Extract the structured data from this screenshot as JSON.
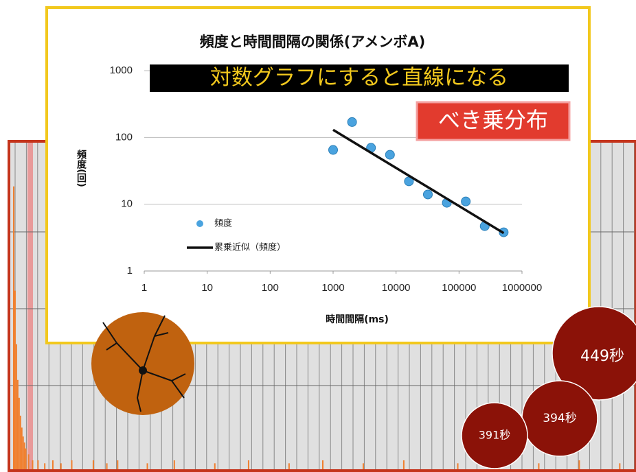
{
  "chart_data": [
    {
      "type": "bar",
      "color": "#f07f2e",
      "x": [
        1,
        2,
        3,
        4,
        5,
        6,
        7,
        8,
        9,
        10,
        12,
        15,
        19,
        24,
        30,
        36,
        44,
        60,
        70,
        78,
        100,
        120,
        150,
        175,
        205,
        230,
        260,
        290,
        330,
        360,
        390,
        420,
        450
      ],
      "values": [
        95,
        60,
        42,
        30,
        24,
        18,
        14,
        11,
        9,
        7,
        5,
        3,
        3,
        2,
        3,
        2,
        3,
        3,
        2,
        3,
        2,
        3,
        2,
        3,
        2,
        3,
        2,
        3,
        2,
        3,
        2,
        3,
        2
      ],
      "xlim": [
        0,
        460
      ],
      "ylim": [
        0,
        100
      ]
    },
    {
      "type": "scatter",
      "title": "頻度と時間間隔の関係(アメンボA)",
      "x_label": "時間間隔(ms)",
      "y_label": "頻度(回)",
      "x": [
        1000,
        2000,
        4000,
        8000,
        16000,
        32000,
        64000,
        128000,
        256000,
        512000
      ],
      "series": [
        {
          "name": "頻度",
          "color": "#4aa3df",
          "values": [
            65,
            170,
            70,
            55,
            22,
            14,
            10.5,
            11,
            4.7,
            3.8
          ]
        },
        {
          "name": "累乗近似（頻度）",
          "color": "#111111",
          "type": "line",
          "x": [
            1000,
            512000
          ],
          "values": [
            130,
            3.7
          ]
        }
      ],
      "xlim": [
        1,
        1000000
      ],
      "ylim": [
        1,
        1000
      ],
      "x_log": true,
      "y_log": true,
      "xticks": [
        1,
        10,
        100,
        1000,
        10000,
        100000,
        1000000
      ],
      "yticks": [
        1,
        10,
        100,
        1000
      ],
      "grid": true,
      "legend": "left"
    }
  ],
  "annotations": {
    "banner": "対数グラフにすると直線になる",
    "label": "べき乗分布"
  },
  "bubbles": [
    {
      "label": "449秒"
    },
    {
      "label": "394秒"
    },
    {
      "label": "391秒"
    }
  ]
}
